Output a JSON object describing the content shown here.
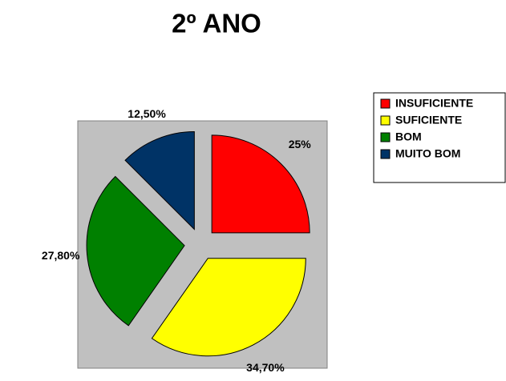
{
  "chart_data": {
    "type": "pie",
    "title": "2º ANO",
    "categories": [
      "INSUFICIENTE",
      "SUFICIENTE",
      "BOM",
      "MUITO BOM"
    ],
    "values": [
      25,
      34.7,
      27.8,
      12.5
    ],
    "value_labels": [
      "25%",
      "34,70%",
      "27,80%",
      "12,50%"
    ],
    "colors": [
      "#ff0000",
      "#ffff00",
      "#008000",
      "#003366"
    ],
    "legend": "right"
  }
}
